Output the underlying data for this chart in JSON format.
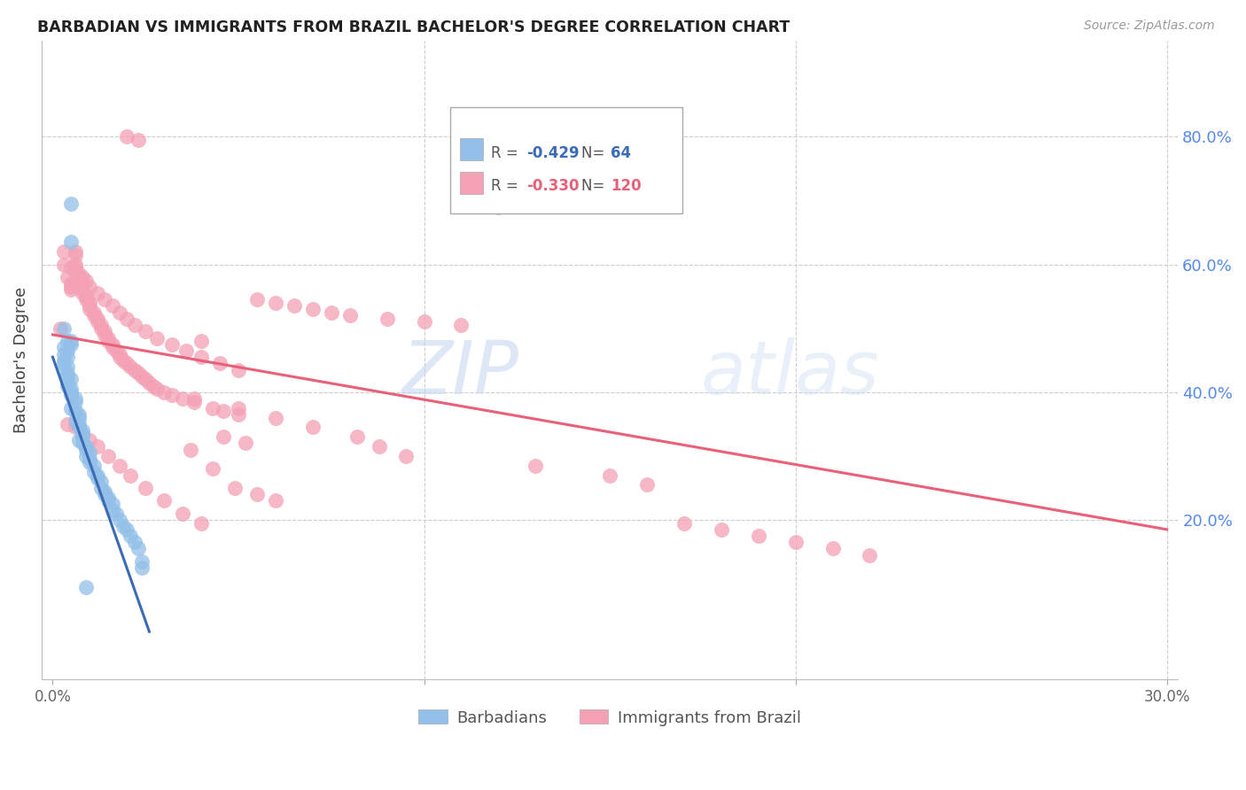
{
  "title": "BARBADIAN VS IMMIGRANTS FROM BRAZIL BACHELOR'S DEGREE CORRELATION CHART",
  "source": "Source: ZipAtlas.com",
  "ylabel": "Bachelor's Degree",
  "watermark": "ZIPatlas",
  "legend_blue_r": "-0.429",
  "legend_blue_n": "64",
  "legend_pink_r": "-0.330",
  "legend_pink_n": "120",
  "legend_blue_label": "Barbadians",
  "legend_pink_label": "Immigrants from Brazil",
  "blue_color": "#92C0E8",
  "pink_color": "#F4A0B5",
  "blue_line_color": "#3B6BB5",
  "pink_line_color": "#E8607A",
  "blue_scatter": {
    "x": [
      0.005,
      0.005,
      0.003,
      0.004,
      0.005,
      0.003,
      0.004,
      0.003,
      0.004,
      0.003,
      0.003,
      0.004,
      0.003,
      0.004,
      0.004,
      0.005,
      0.004,
      0.004,
      0.005,
      0.005,
      0.005,
      0.006,
      0.006,
      0.005,
      0.006,
      0.007,
      0.007,
      0.006,
      0.007,
      0.007,
      0.008,
      0.008,
      0.008,
      0.007,
      0.008,
      0.009,
      0.009,
      0.01,
      0.009,
      0.01,
      0.01,
      0.011,
      0.011,
      0.012,
      0.012,
      0.013,
      0.013,
      0.014,
      0.014,
      0.015,
      0.015,
      0.016,
      0.016,
      0.017,
      0.018,
      0.019,
      0.02,
      0.021,
      0.022,
      0.023,
      0.024,
      0.024,
      0.005,
      0.009
    ],
    "y": [
      0.695,
      0.635,
      0.5,
      0.48,
      0.475,
      0.47,
      0.465,
      0.46,
      0.455,
      0.45,
      0.445,
      0.44,
      0.435,
      0.43,
      0.425,
      0.42,
      0.415,
      0.41,
      0.405,
      0.4,
      0.395,
      0.39,
      0.385,
      0.375,
      0.37,
      0.365,
      0.36,
      0.355,
      0.35,
      0.345,
      0.34,
      0.335,
      0.33,
      0.325,
      0.32,
      0.315,
      0.31,
      0.305,
      0.3,
      0.295,
      0.29,
      0.285,
      0.275,
      0.27,
      0.265,
      0.26,
      0.25,
      0.245,
      0.24,
      0.235,
      0.23,
      0.225,
      0.215,
      0.21,
      0.2,
      0.19,
      0.185,
      0.175,
      0.165,
      0.155,
      0.135,
      0.125,
      0.48,
      0.095
    ]
  },
  "pink_scatter": {
    "x": [
      0.002,
      0.003,
      0.02,
      0.023,
      0.004,
      0.005,
      0.005,
      0.005,
      0.006,
      0.006,
      0.006,
      0.006,
      0.007,
      0.007,
      0.008,
      0.008,
      0.008,
      0.009,
      0.009,
      0.01,
      0.01,
      0.01,
      0.011,
      0.011,
      0.012,
      0.012,
      0.013,
      0.013,
      0.014,
      0.014,
      0.015,
      0.015,
      0.016,
      0.016,
      0.017,
      0.018,
      0.018,
      0.019,
      0.02,
      0.021,
      0.022,
      0.023,
      0.024,
      0.025,
      0.026,
      0.027,
      0.028,
      0.03,
      0.032,
      0.035,
      0.038,
      0.04,
      0.043,
      0.046,
      0.05,
      0.055,
      0.06,
      0.065,
      0.07,
      0.075,
      0.08,
      0.09,
      0.1,
      0.11,
      0.12,
      0.003,
      0.005,
      0.006,
      0.007,
      0.008,
      0.009,
      0.01,
      0.012,
      0.014,
      0.016,
      0.018,
      0.02,
      0.022,
      0.025,
      0.028,
      0.032,
      0.036,
      0.04,
      0.045,
      0.05,
      0.004,
      0.006,
      0.008,
      0.01,
      0.012,
      0.015,
      0.018,
      0.021,
      0.025,
      0.03,
      0.035,
      0.04,
      0.046,
      0.052,
      0.037,
      0.043,
      0.049,
      0.055,
      0.06,
      0.038,
      0.05,
      0.06,
      0.07,
      0.082,
      0.088,
      0.095,
      0.13,
      0.15,
      0.16,
      0.17,
      0.18,
      0.19,
      0.2,
      0.21,
      0.22
    ],
    "y": [
      0.5,
      0.62,
      0.8,
      0.795,
      0.58,
      0.57,
      0.565,
      0.56,
      0.62,
      0.615,
      0.6,
      0.595,
      0.58,
      0.575,
      0.57,
      0.56,
      0.555,
      0.55,
      0.545,
      0.54,
      0.535,
      0.53,
      0.525,
      0.52,
      0.515,
      0.51,
      0.505,
      0.5,
      0.495,
      0.49,
      0.485,
      0.48,
      0.475,
      0.47,
      0.465,
      0.46,
      0.455,
      0.45,
      0.445,
      0.44,
      0.435,
      0.43,
      0.425,
      0.42,
      0.415,
      0.41,
      0.405,
      0.4,
      0.395,
      0.39,
      0.385,
      0.48,
      0.375,
      0.37,
      0.365,
      0.545,
      0.54,
      0.535,
      0.53,
      0.525,
      0.52,
      0.515,
      0.51,
      0.505,
      0.69,
      0.6,
      0.595,
      0.59,
      0.585,
      0.58,
      0.575,
      0.565,
      0.555,
      0.545,
      0.535,
      0.525,
      0.515,
      0.505,
      0.495,
      0.485,
      0.475,
      0.465,
      0.455,
      0.445,
      0.435,
      0.35,
      0.345,
      0.335,
      0.325,
      0.315,
      0.3,
      0.285,
      0.27,
      0.25,
      0.23,
      0.21,
      0.195,
      0.33,
      0.32,
      0.31,
      0.28,
      0.25,
      0.24,
      0.23,
      0.39,
      0.375,
      0.36,
      0.345,
      0.33,
      0.315,
      0.3,
      0.285,
      0.27,
      0.255,
      0.195,
      0.185,
      0.175,
      0.165,
      0.155,
      0.145
    ]
  },
  "xlim": [
    -0.003,
    0.303
  ],
  "ylim": [
    -0.05,
    0.95
  ],
  "xright": 0.3,
  "blue_line_x": [
    0.0,
    0.026
  ],
  "blue_line_y": [
    0.455,
    0.025
  ],
  "pink_line_x": [
    0.0,
    0.3
  ],
  "pink_line_y": [
    0.49,
    0.185
  ]
}
